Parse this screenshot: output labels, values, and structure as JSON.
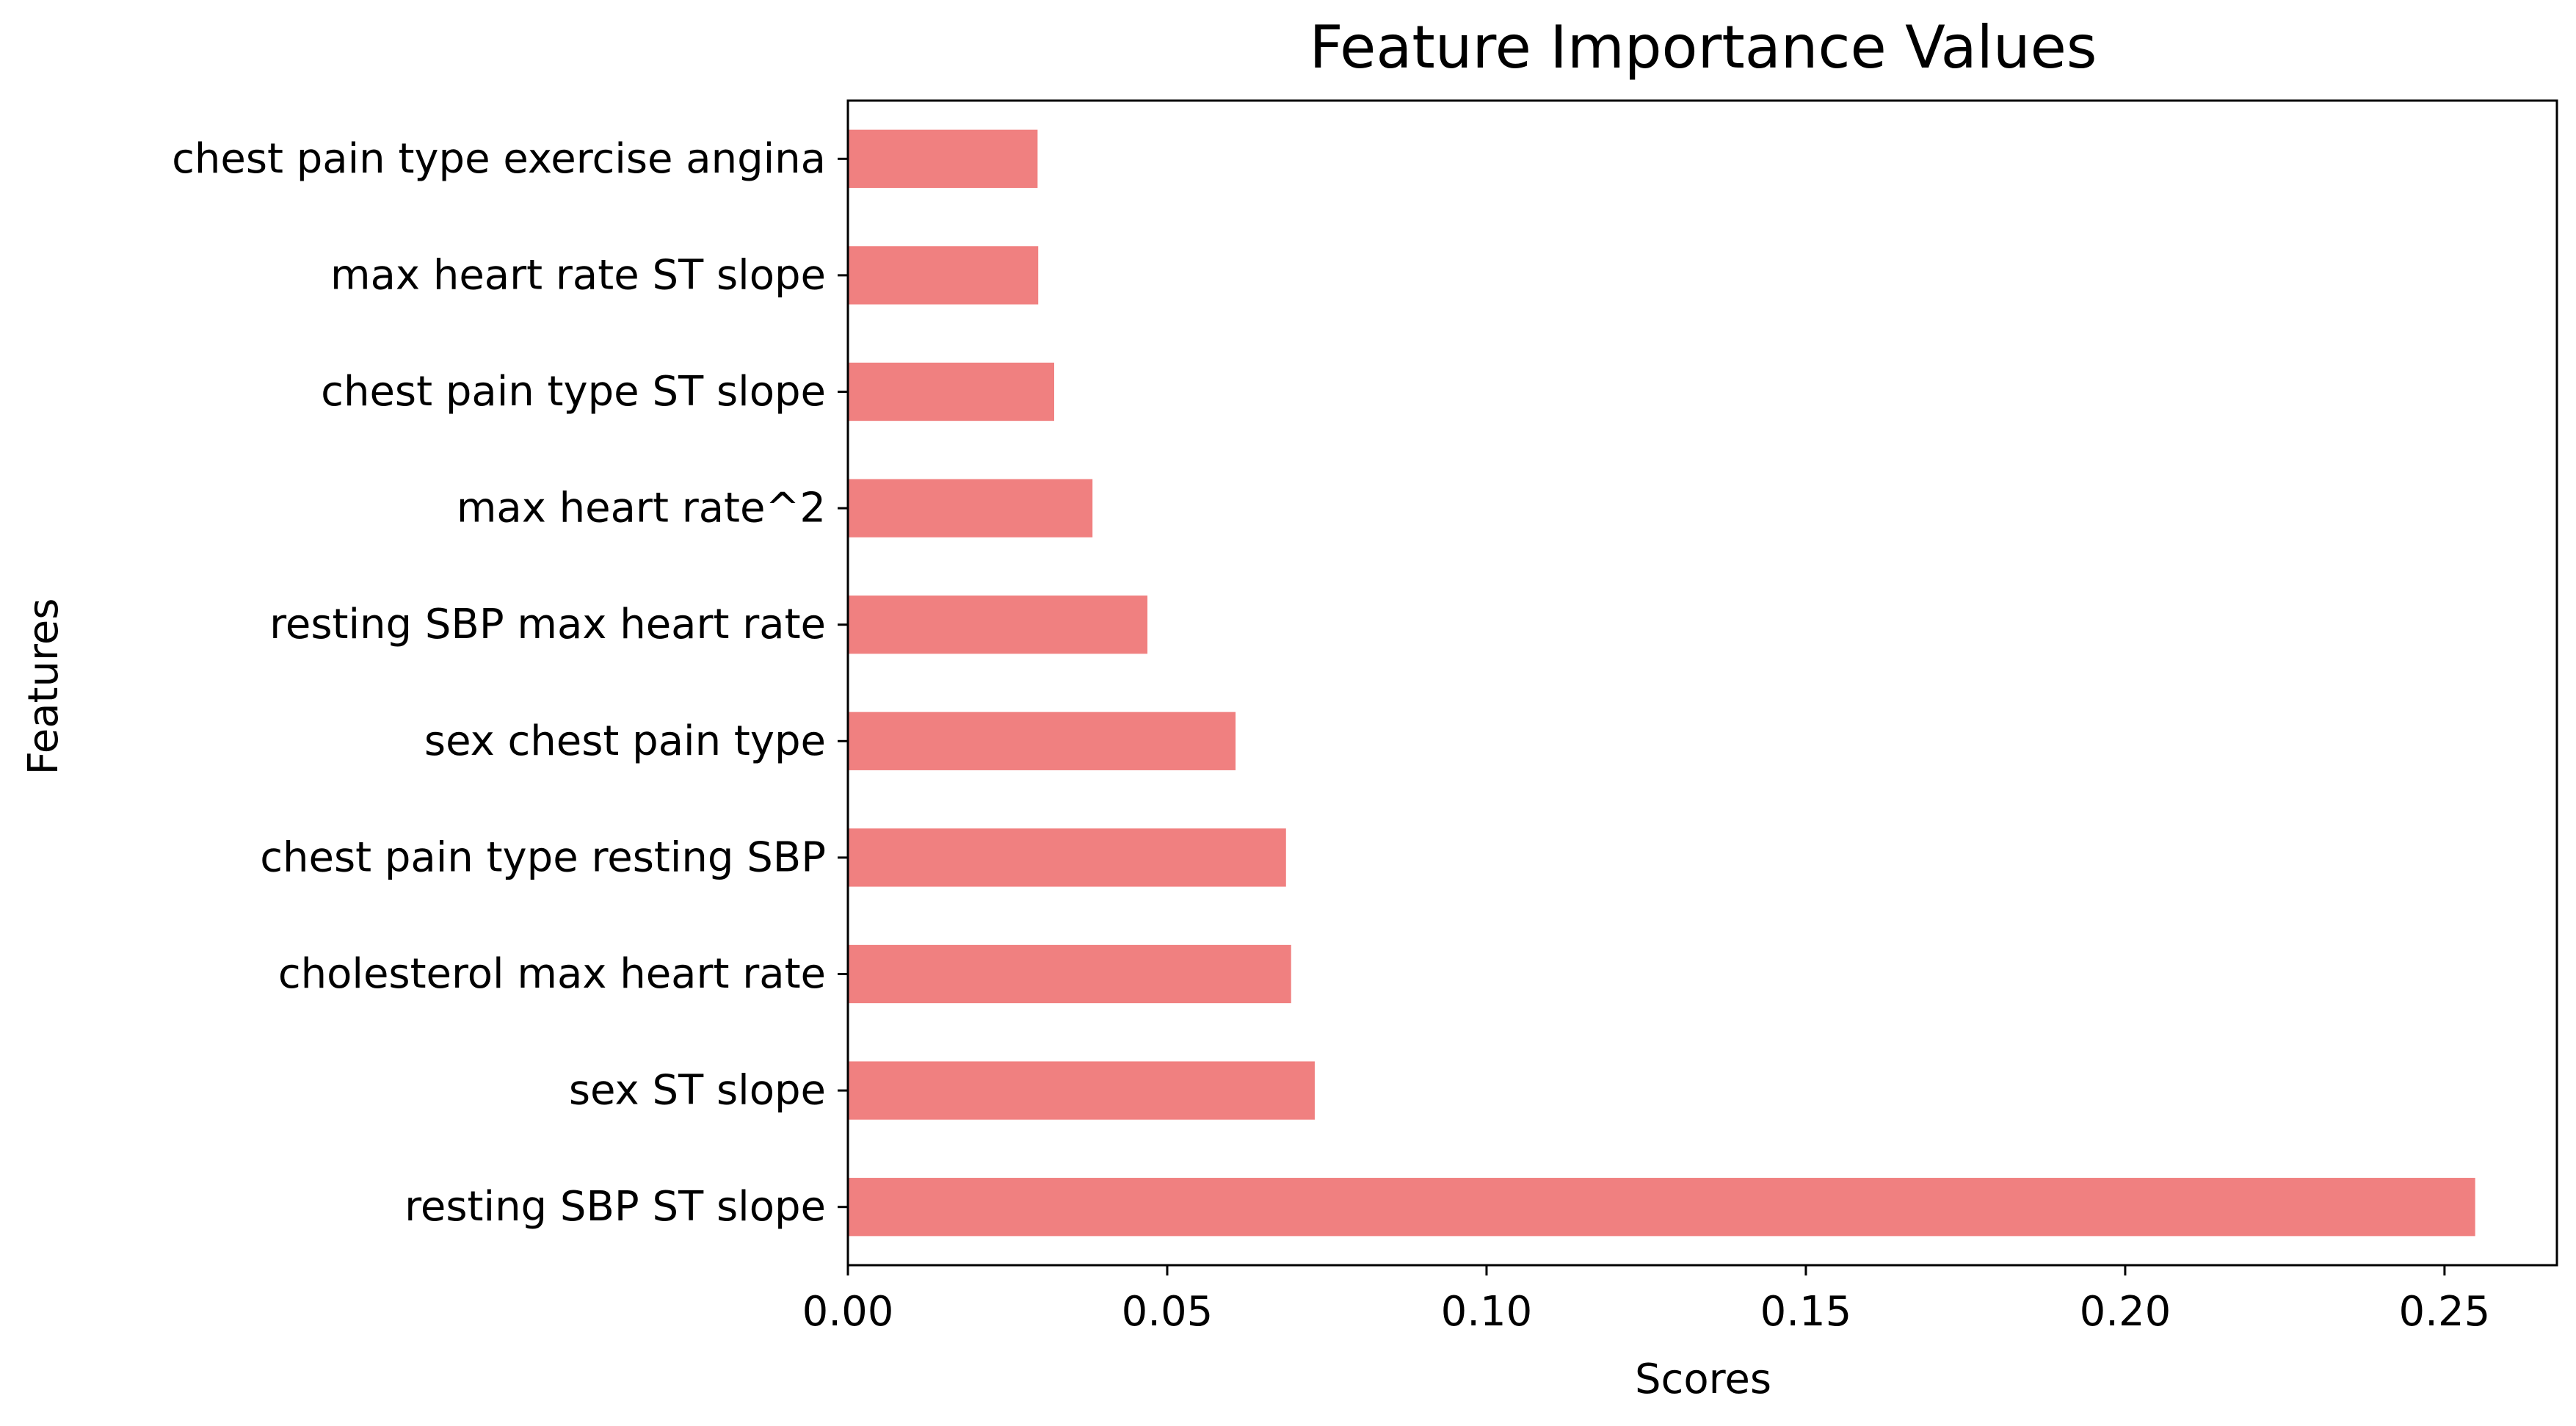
{
  "chart_data": {
    "type": "bar",
    "orientation": "horizontal",
    "title": "Feature Importance Values",
    "xlabel": "Scores",
    "ylabel": "Features",
    "xlim": [
      0,
      0.2676
    ],
    "xticks": [
      "0.00",
      "0.05",
      "0.10",
      "0.15",
      "0.20",
      "0.25"
    ],
    "xtick_values": [
      0.0,
      0.05,
      0.1,
      0.15,
      0.2,
      0.25
    ],
    "grid": false,
    "bar_color": "#f08080",
    "categories": [
      "resting SBP ST slope",
      "sex ST slope",
      "cholesterol max heart rate",
      "chest pain type resting SBP",
      "sex chest pain type",
      "resting SBP max heart rate",
      "max heart rate^2",
      "chest pain type ST slope",
      "max heart rate ST slope",
      "chest pain type exercise angina"
    ],
    "values": [
      0.2548,
      0.0731,
      0.0694,
      0.0686,
      0.0607,
      0.0469,
      0.0383,
      0.0323,
      0.0298,
      0.0297
    ]
  }
}
